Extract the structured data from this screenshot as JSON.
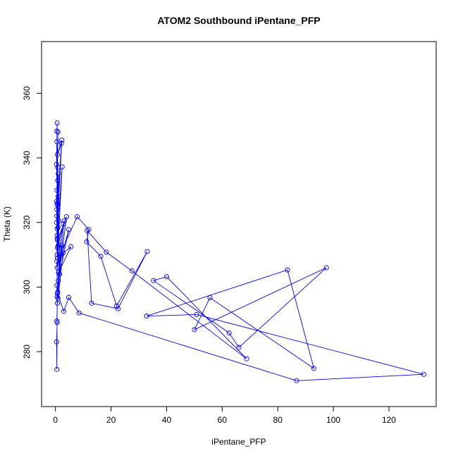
{
  "chart_data": {
    "type": "line",
    "title": "ATOM2 Southbound iPentane_PFP",
    "xlabel": "iPentane_PFP",
    "ylabel": "Theta (K)",
    "xlim": [
      -5,
      137
    ],
    "ylim": [
      263,
      376
    ],
    "xticks": [
      0,
      20,
      40,
      60,
      80,
      100,
      120
    ],
    "yticks": [
      280,
      300,
      320,
      340,
      360
    ],
    "grid": false,
    "legend": "none",
    "series": [
      {
        "color": "#0000ff",
        "marker": "open-circle",
        "x": [
          0.5,
          0.6,
          0.4,
          0.7,
          0.5,
          0.8,
          0.6,
          0.4,
          0.9,
          0.5,
          0.7,
          0.6,
          0.5,
          0.8,
          0.4,
          0.6,
          2.3,
          0.7,
          2.2,
          0.9,
          0.6,
          1.0,
          0.8,
          0.5,
          1.2,
          0.7,
          2.4,
          0.9,
          1.1,
          0.6,
          2.8,
          0.8,
          3.2,
          1.0,
          4.0,
          0.7,
          1.5,
          4.8,
          1.3,
          2.1,
          0.9,
          2.7,
          5.6,
          1.1,
          0.8,
          1.6,
          7.8,
          12.0,
          11.2,
          16.3,
          22.0,
          33.0,
          22.5,
          13.0,
          11.4,
          18.3,
          27.5,
          68.8,
          40.0,
          35.3,
          62.5,
          66.0,
          97.5,
          50.0,
          55.6,
          93.0,
          83.5,
          32.8,
          50.8,
          132.5,
          86.8,
          8.5,
          4.8,
          3.0,
          0.7,
          0.5,
          0.6,
          0.4,
          0.5,
          0.6,
          0.5,
          0.7,
          0.5
        ],
        "y": [
          348.3,
          350.8,
          338.0,
          326.0,
          345.0,
          337.0,
          325.5,
          320.0,
          348.0,
          330.0,
          315.0,
          310.0,
          322.0,
          333.0,
          326.5,
          318.0,
          345.5,
          341.0,
          344.5,
          328.0,
          316.0,
          335.0,
          312.0,
          324.0,
          320.5,
          309.0,
          337.2,
          318.5,
          313.0,
          306.0,
          319.5,
          312.5,
          320.5,
          302.0,
          321.8,
          314.5,
          304.0,
          317.8,
          306.5,
          313.0,
          296.5,
          310.5,
          312.5,
          304.5,
          298.5,
          310.0,
          321.8,
          317.8,
          314.0,
          309.5,
          294.2,
          311.0,
          293.3,
          295.0,
          317.5,
          310.8,
          305.0,
          277.8,
          303.2,
          302.0,
          285.8,
          281.3,
          306.0,
          286.8,
          296.7,
          274.8,
          305.3,
          291.0,
          291.5,
          273.0,
          271.0,
          292.0,
          296.8,
          292.5,
          298.0,
          289.5,
          289.0,
          283.0,
          274.5,
          297.0,
          300.5,
          295.0,
          308.0
        ]
      }
    ]
  }
}
